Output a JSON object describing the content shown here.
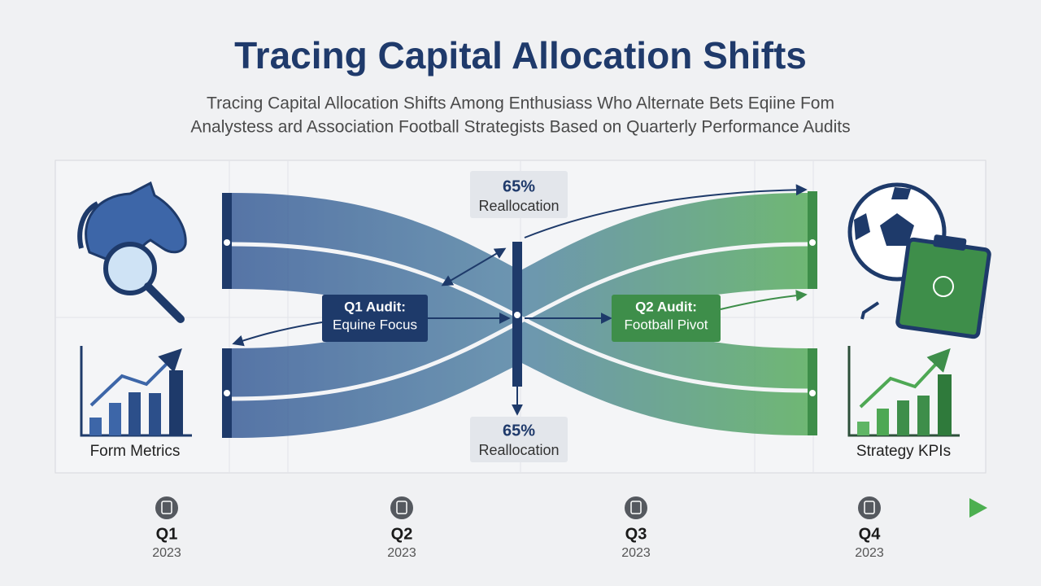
{
  "header": {
    "title": "Tracing Capital Allocation Shifts",
    "subtitle": [
      "Tracing Capital Allocation Shifts Among Enthusiass Who Alternate Bets Eqiine Fom",
      "Analystess ard Association Football Strategists Based on Quarterly Performance Audits"
    ]
  },
  "callouts": [
    {
      "percent": "65%",
      "label": "Reallocation"
    },
    {
      "percent": "65%",
      "label": "Reallocation"
    }
  ],
  "audits": [
    {
      "title": "Q1 Audit:",
      "label": "Equine Focus"
    },
    {
      "title": "Q2 Audit:",
      "label": "Football Pivot"
    }
  ],
  "panels": {
    "left": "Form Metrics",
    "right": "Strategy KPIs"
  },
  "timeline": [
    {
      "quarter": "Q1",
      "year": "2023"
    },
    {
      "quarter": "Q2",
      "year": "2023"
    },
    {
      "quarter": "Q3",
      "year": "2023"
    },
    {
      "quarter": "Q4",
      "year": "2023"
    }
  ]
}
